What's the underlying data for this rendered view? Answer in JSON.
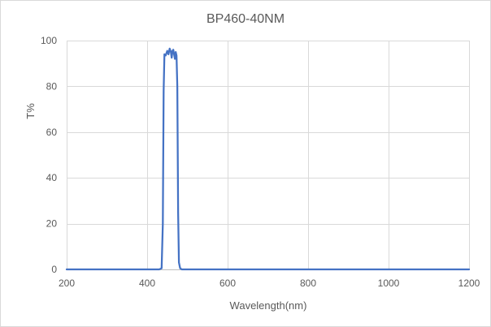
{
  "chart_data": {
    "type": "line",
    "title": "BP460-40NM",
    "xlabel": "Wavelength(nm)",
    "ylabel": "T%",
    "xlim": [
      200,
      1200
    ],
    "ylim": [
      0,
      100
    ],
    "x_ticks": [
      200,
      400,
      600,
      800,
      1000,
      1200
    ],
    "y_ticks": [
      0,
      20,
      40,
      60,
      80,
      100
    ],
    "grid": true,
    "legend": "none",
    "series": [
      {
        "color": "#4472c4",
        "x": [
          200,
          300,
          400,
          420,
          430,
          436,
          439,
          441,
          443,
          446,
          450,
          453,
          456,
          459,
          461,
          463,
          465,
          467,
          469,
          471,
          473,
          475,
          477,
          479,
          482,
          486,
          490,
          500,
          600,
          700,
          800,
          900,
          1000,
          1100,
          1200
        ],
        "y": [
          0,
          0,
          0,
          0,
          0,
          0.5,
          20,
          78,
          94,
          93.5,
          95.5,
          94,
          96.5,
          95,
          92.5,
          95.5,
          96,
          94,
          92,
          95,
          93.5,
          80,
          25,
          3,
          0.5,
          0,
          0,
          0,
          0,
          0,
          0,
          0,
          0,
          0,
          0
        ]
      }
    ]
  }
}
